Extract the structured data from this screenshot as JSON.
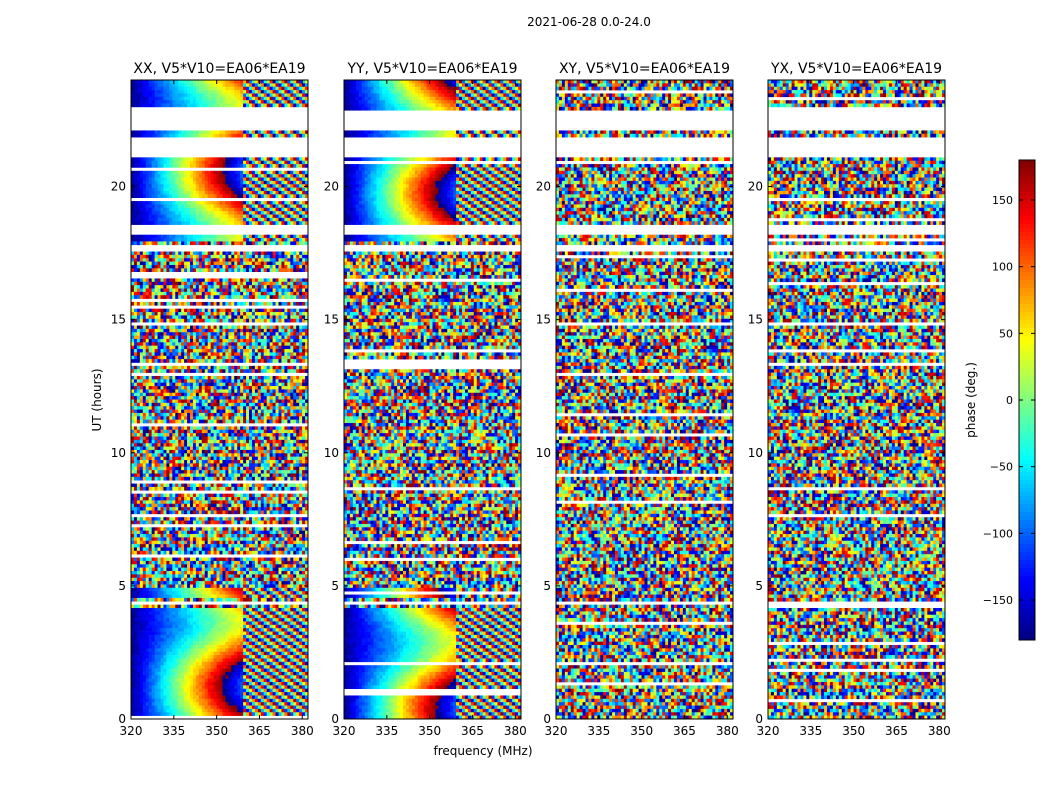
{
  "chart_data": {
    "type": "heatmap",
    "title": "2021-06-28 0.0-24.0",
    "xlabel": "frequency (MHz)",
    "ylabel": "UT (hours)",
    "xlim": [
      320,
      382
    ],
    "ylim": [
      0,
      24
    ],
    "x_ticks": [
      320,
      335,
      350,
      365,
      380
    ],
    "x_tick_labels": [
      "320",
      "335",
      "350",
      "365",
      "380"
    ],
    "y_ticks": [
      0,
      5,
      10,
      15,
      20
    ],
    "y_tick_labels": [
      "0",
      "5",
      "10",
      "15",
      "20"
    ],
    "panels": [
      {
        "name": "XX, V5*V10=EA06*EA19",
        "pol": "XX",
        "coherent": true
      },
      {
        "name": "YY, V5*V10=EA06*EA19",
        "pol": "YY",
        "coherent": true
      },
      {
        "name": "XY, V5*V10=EA06*EA19",
        "pol": "XY",
        "coherent": false
      },
      {
        "name": "YX, V5*V10=EA06*EA19",
        "pol": "YX",
        "coherent": false
      }
    ],
    "coherent_time_ranges": [
      [
        0.0,
        4.2
      ],
      [
        4.5,
        4.9
      ],
      [
        17.9,
        24.0
      ]
    ],
    "flagged_time_ranges": [
      [
        22.1,
        22.8
      ],
      [
        21.1,
        21.9
      ],
      [
        17.5,
        17.8
      ],
      [
        4.25,
        4.45
      ],
      [
        18.25,
        18.55
      ]
    ],
    "colorbar": {
      "label": "phase (deg.)",
      "range": [
        -180,
        180
      ],
      "ticks": [
        150,
        100,
        50,
        0,
        -50,
        -100,
        -150
      ],
      "tick_labels": [
        "150",
        "100",
        "50",
        "0",
        "−50",
        "−100",
        "−150"
      ],
      "colormap": "jet"
    }
  }
}
